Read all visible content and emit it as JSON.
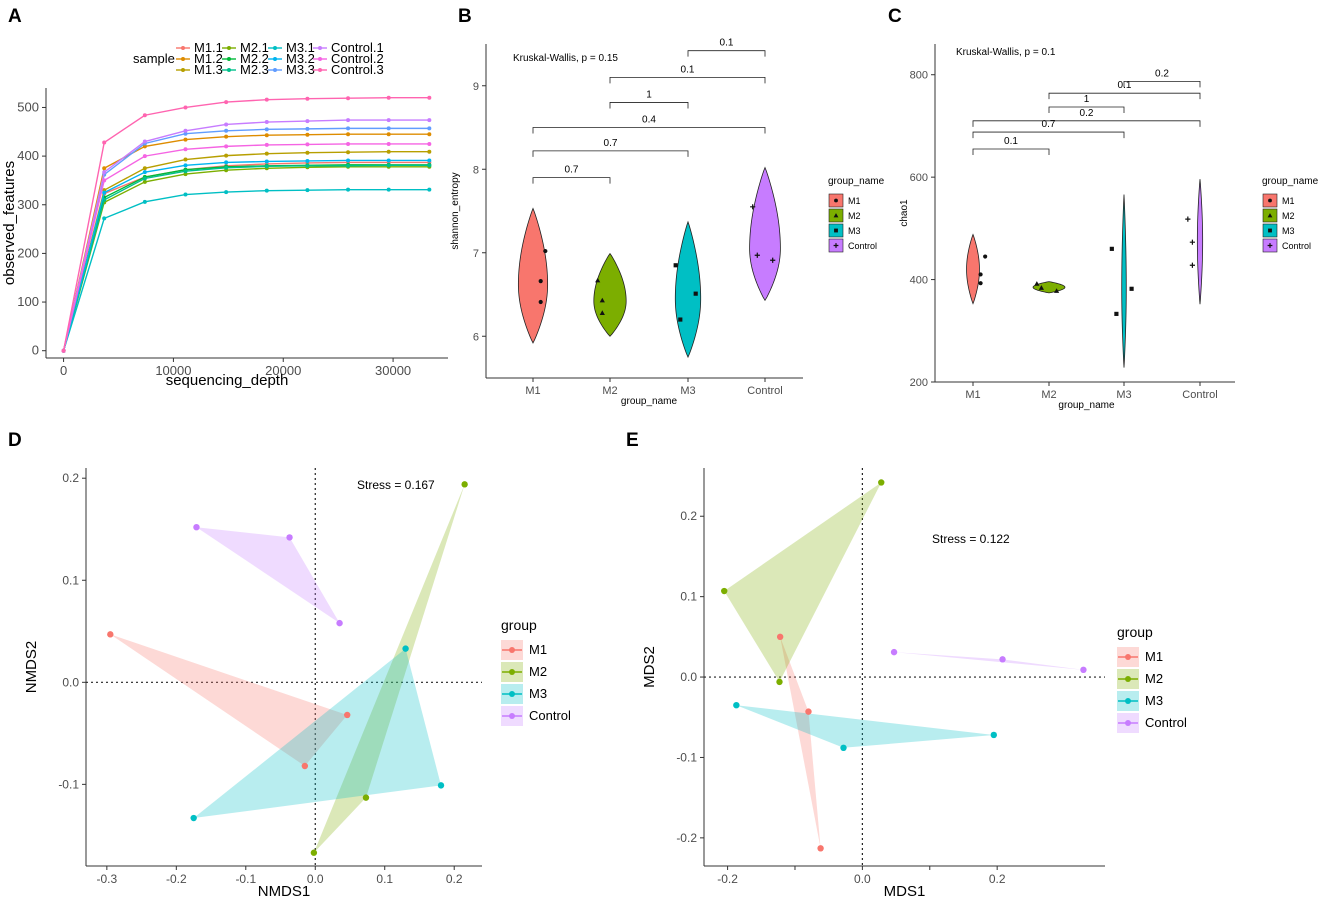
{
  "panel_labels": [
    "A",
    "B",
    "C",
    "D",
    "E"
  ],
  "colors": {
    "M1": "#F8766D",
    "M2": "#7CAE00",
    "M3": "#00BFC4",
    "Control": "#C77CFF"
  },
  "chart_data": [
    {
      "panel": "A",
      "type": "line",
      "title": "",
      "xlabel": "sequencing_depth",
      "ylabel": "observed_features",
      "xlim": [
        -1600,
        35000
      ],
      "ylim": [
        -15,
        540
      ],
      "xticks": [
        0,
        10000,
        20000,
        30000
      ],
      "xtick_labels": [
        "0",
        "10000",
        "20000",
        "30000"
      ],
      "yticks": [
        0,
        100,
        200,
        300,
        400,
        500
      ],
      "ytick_labels": [
        "0",
        "100",
        "200",
        "300",
        "400",
        "500"
      ],
      "legend_title": "sample",
      "x": [
        0,
        3700,
        7400,
        11100,
        14800,
        18500,
        22200,
        25900,
        29600,
        33300
      ],
      "series": [
        {
          "name": "M1.1",
          "color": "#F8766D",
          "values": [
            0,
            323,
            357,
            372,
            380,
            384,
            386,
            387,
            387,
            387
          ]
        },
        {
          "name": "M1.2",
          "color": "#DE8C00",
          "values": [
            0,
            375,
            420,
            434,
            440,
            443,
            444,
            445,
            445,
            445
          ]
        },
        {
          "name": "M1.3",
          "color": "#B79F00",
          "values": [
            0,
            330,
            375,
            393,
            401,
            405,
            407,
            408,
            409,
            409
          ]
        },
        {
          "name": "M2.1",
          "color": "#7CAE00",
          "values": [
            0,
            305,
            347,
            363,
            371,
            375,
            377,
            378,
            378,
            378
          ]
        },
        {
          "name": "M2.2",
          "color": "#00BA38",
          "values": [
            0,
            315,
            357,
            372,
            378,
            380,
            381,
            382,
            382,
            382
          ]
        },
        {
          "name": "M2.3",
          "color": "#00C08B",
          "values": [
            0,
            310,
            354,
            369,
            376,
            379,
            380,
            380,
            381,
            381
          ]
        },
        {
          "name": "M3.1",
          "color": "#00BFC4",
          "values": [
            0,
            272,
            306,
            321,
            326,
            329,
            330,
            331,
            331,
            331
          ]
        },
        {
          "name": "M3.2",
          "color": "#00B4F0",
          "values": [
            0,
            325,
            367,
            381,
            387,
            389,
            390,
            391,
            391,
            391
          ]
        },
        {
          "name": "M3.3",
          "color": "#619CFF",
          "values": [
            0,
            362,
            426,
            446,
            452,
            455,
            456,
            457,
            457,
            457
          ]
        },
        {
          "name": "Control.1",
          "color": "#C77CFF",
          "values": [
            0,
            367,
            430,
            452,
            465,
            470,
            472,
            474,
            474,
            474
          ]
        },
        {
          "name": "Control.2",
          "color": "#F564E3",
          "values": [
            0,
            350,
            400,
            414,
            420,
            423,
            424,
            425,
            425,
            425
          ]
        },
        {
          "name": "Control.3",
          "color": "#FF64B0",
          "values": [
            0,
            428,
            484,
            500,
            511,
            516,
            518,
            519,
            520,
            520
          ]
        }
      ]
    },
    {
      "panel": "B",
      "type": "violin",
      "xlabel": "group_name",
      "ylabel": "shannon_entropy",
      "ylim": [
        5.5,
        9.5
      ],
      "yticks": [
        6,
        7,
        8,
        9
      ],
      "ytick_labels": [
        "6",
        "7",
        "8",
        "9"
      ],
      "categories": [
        "M1",
        "M2",
        "M3",
        "Control"
      ],
      "annotation": "Kruskal-Wallis, p = 0.15",
      "legend_title": "group_name",
      "legend_labels": [
        "M1",
        "M2",
        "M3",
        "Control"
      ],
      "points": [
        [
          7.02,
          6.66,
          6.41
        ],
        [
          6.67,
          6.43,
          6.28
        ],
        [
          6.85,
          6.51,
          6.2
        ],
        [
          7.55,
          6.97,
          6.91
        ]
      ],
      "violins": [
        {
          "ymin": 5.92,
          "ymax": 7.53,
          "peak": 6.62,
          "w": 0.38
        },
        {
          "ymin": 6.0,
          "ymax": 6.99,
          "peak": 6.42,
          "w": 0.42
        },
        {
          "ymin": 5.75,
          "ymax": 7.37,
          "peak": 6.45,
          "w": 0.33
        },
        {
          "ymin": 6.43,
          "ymax": 8.02,
          "peak": 7.05,
          "w": 0.4
        }
      ],
      "comparisons": [
        {
          "groups": [
            "M1",
            "M2"
          ],
          "label": "0.7",
          "y": 7.9
        },
        {
          "groups": [
            "M1",
            "M3"
          ],
          "label": "0.7",
          "y": 8.22
        },
        {
          "groups": [
            "M1",
            "Control"
          ],
          "label": "0.4",
          "y": 8.5
        },
        {
          "groups": [
            "M2",
            "M3"
          ],
          "label": "1",
          "y": 8.8
        },
        {
          "groups": [
            "M2",
            "Control"
          ],
          "label": "0.1",
          "y": 9.1
        },
        {
          "groups": [
            "M3",
            "Control"
          ],
          "label": "0.1",
          "y": 9.42
        }
      ]
    },
    {
      "panel": "C",
      "type": "violin",
      "xlabel": "group_name",
      "ylabel": "chao1",
      "ylim": [
        200,
        860
      ],
      "yticks": [
        200,
        400,
        600,
        800
      ],
      "ytick_labels": [
        "200",
        "400",
        "600",
        "800"
      ],
      "categories": [
        "M1",
        "M2",
        "M3",
        "Control"
      ],
      "annotation": "Kruskal-Wallis, p = 0.1",
      "legend_title": "group_name",
      "legend_labels": [
        "M1",
        "M2",
        "M3",
        "Control"
      ],
      "points": [
        [
          445,
          410,
          393
        ],
        [
          392,
          384,
          378
        ],
        [
          460,
          382,
          333
        ],
        [
          518,
          473,
          428
        ]
      ],
      "violins": [
        {
          "ymin": 353,
          "ymax": 488,
          "peak": 420,
          "w": 0.17
        },
        {
          "ymin": 374,
          "ymax": 396,
          "peak": 385,
          "w": 0.42
        },
        {
          "ymin": 228,
          "ymax": 566,
          "peak": 382,
          "w": 0.06
        },
        {
          "ymin": 352,
          "ymax": 596,
          "peak": 475,
          "w": 0.07
        }
      ],
      "comparisons": [
        {
          "groups": [
            "M1",
            "M2"
          ],
          "label": "0.1",
          "y": 655
        },
        {
          "groups": [
            "M1",
            "M3"
          ],
          "label": "0.7",
          "y": 688
        },
        {
          "groups": [
            "M1",
            "Control"
          ],
          "label": "0.2",
          "y": 710
        },
        {
          "groups": [
            "M2",
            "M3"
          ],
          "label": "1",
          "y": 737
        },
        {
          "groups": [
            "M2",
            "Control"
          ],
          "label": "0.1",
          "y": 764
        },
        {
          "groups": [
            "M3",
            "Control"
          ],
          "label": "0.2",
          "y": 787
        }
      ]
    },
    {
      "panel": "D",
      "type": "scatter",
      "xlabel": "NMDS1",
      "ylabel": "NMDS2",
      "xlim": [
        -0.33,
        0.24
      ],
      "ylim": [
        -0.18,
        0.21
      ],
      "xticks": [
        -0.3,
        -0.2,
        -0.1,
        0,
        0.1,
        0.2
      ],
      "xtick_labels": [
        "-0.3",
        "-0.2",
        "-0.1",
        "0.0",
        "0.1",
        "0.2"
      ],
      "yticks": [
        -0.1,
        0,
        0.1,
        0.2
      ],
      "ytick_labels": [
        "-0.1",
        "0.0",
        "0.1",
        "0.2"
      ],
      "annotation": "Stress = 0.167",
      "legend_title": "group",
      "legend_labels": [
        "M1",
        "M2",
        "M3",
        "Control"
      ],
      "series": [
        {
          "name": "M1",
          "points": [
            [
              -0.295,
              0.047
            ],
            [
              0.046,
              -0.032
            ],
            [
              -0.015,
              -0.082
            ]
          ]
        },
        {
          "name": "M2",
          "points": [
            [
              0.215,
              0.194
            ],
            [
              0.073,
              -0.113
            ],
            [
              -0.002,
              -0.167
            ]
          ]
        },
        {
          "name": "M3",
          "points": [
            [
              0.13,
              0.033
            ],
            [
              0.181,
              -0.101
            ],
            [
              -0.175,
              -0.133
            ]
          ]
        },
        {
          "name": "Control",
          "points": [
            [
              -0.171,
              0.152
            ],
            [
              -0.037,
              0.142
            ],
            [
              0.035,
              0.058
            ]
          ]
        }
      ]
    },
    {
      "panel": "E",
      "type": "scatter",
      "xlabel": "MDS1",
      "ylabel": "MDS2",
      "xlim": [
        -0.235,
        0.36
      ],
      "ylim": [
        -0.235,
        0.26
      ],
      "xticks": [
        -0.2,
        -0.1,
        0,
        0.1,
        0.2
      ],
      "xtick_labels": [
        "-0.2",
        "",
        "0.0",
        "",
        "0.2"
      ],
      "yticks": [
        -0.2,
        -0.1,
        0,
        0.1,
        0.2
      ],
      "ytick_labels": [
        "-0.2",
        "-0.1",
        "0.0",
        "0.1",
        "0.2"
      ],
      "annotation": "Stress =  0.122",
      "legend_title": "group",
      "legend_labels": [
        "M1",
        "M2",
        "M3",
        "Control"
      ],
      "series": [
        {
          "name": "M1",
          "points": [
            [
              -0.122,
              0.05
            ],
            [
              -0.08,
              -0.043
            ],
            [
              -0.062,
              -0.213
            ]
          ]
        },
        {
          "name": "M2",
          "points": [
            [
              -0.205,
              0.107
            ],
            [
              0.028,
              0.242
            ],
            [
              -0.123,
              -0.006
            ]
          ]
        },
        {
          "name": "M3",
          "points": [
            [
              -0.187,
              -0.035
            ],
            [
              0.195,
              -0.072
            ],
            [
              -0.028,
              -0.088
            ]
          ]
        },
        {
          "name": "Control",
          "points": [
            [
              0.047,
              0.031
            ],
            [
              0.208,
              0.022
            ],
            [
              0.328,
              0.009
            ]
          ]
        }
      ]
    }
  ]
}
